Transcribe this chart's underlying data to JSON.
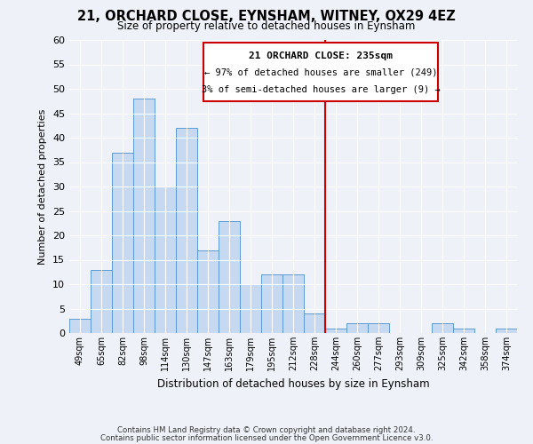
{
  "title": "21, ORCHARD CLOSE, EYNSHAM, WITNEY, OX29 4EZ",
  "subtitle": "Size of property relative to detached houses in Eynsham",
  "xlabel": "Distribution of detached houses by size in Eynsham",
  "ylabel": "Number of detached properties",
  "bar_labels": [
    "49sqm",
    "65sqm",
    "82sqm",
    "98sqm",
    "114sqm",
    "130sqm",
    "147sqm",
    "163sqm",
    "179sqm",
    "195sqm",
    "212sqm",
    "228sqm",
    "244sqm",
    "260sqm",
    "277sqm",
    "293sqm",
    "309sqm",
    "325sqm",
    "342sqm",
    "358sqm",
    "374sqm"
  ],
  "bar_heights": [
    3,
    13,
    37,
    48,
    30,
    42,
    17,
    23,
    10,
    12,
    12,
    4,
    1,
    2,
    2,
    0,
    0,
    2,
    1,
    0,
    1
  ],
  "bar_color": "#c6d9f0",
  "bar_edge_color": "#5b9bd5",
  "ylim": [
    0,
    60
  ],
  "yticks": [
    0,
    5,
    10,
    15,
    20,
    25,
    30,
    35,
    40,
    45,
    50,
    55,
    60
  ],
  "vline_color": "#cc0000",
  "annotation_title": "21 ORCHARD CLOSE: 235sqm",
  "annotation_line1": "← 97% of detached houses are smaller (249)",
  "annotation_line2": "3% of semi-detached houses are larger (9) →",
  "footnote1": "Contains HM Land Registry data © Crown copyright and database right 2024.",
  "footnote2": "Contains public sector information licensed under the Open Government Licence v3.0.",
  "background_color": "#eef2f8",
  "grid_color": "#ffffff"
}
